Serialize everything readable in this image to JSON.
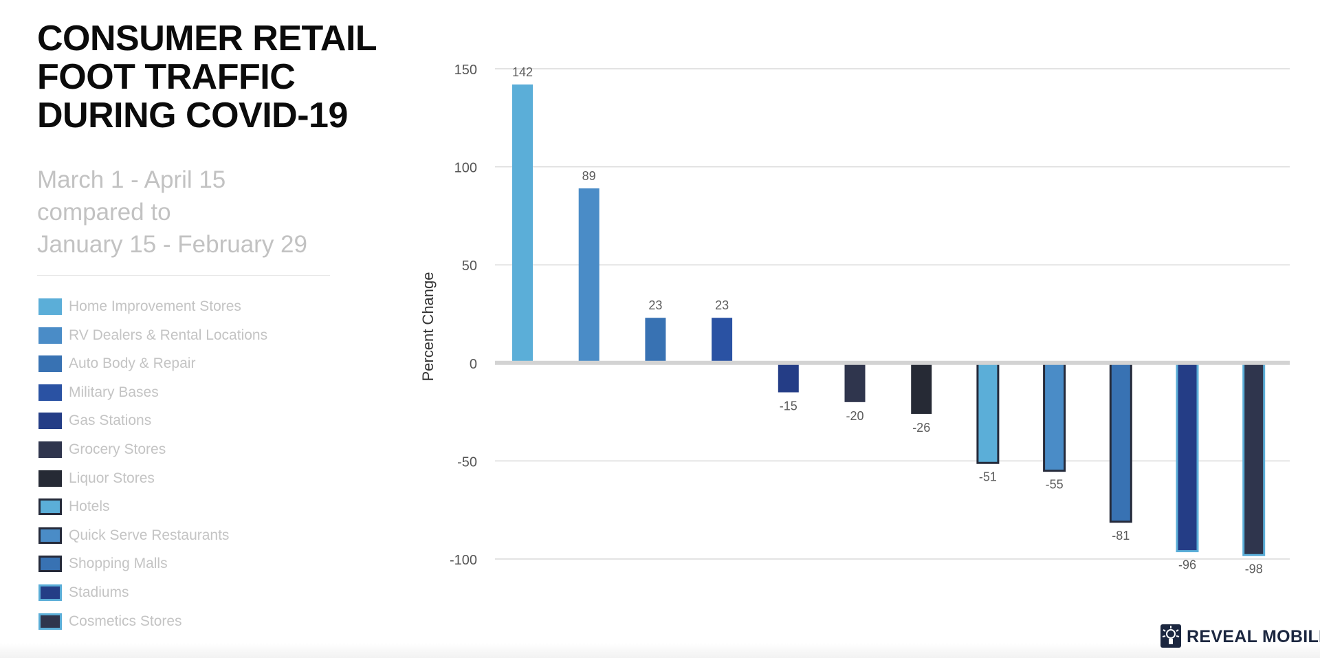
{
  "header": {
    "title_lines": [
      "CONSUMER RETAIL",
      "FOOT TRAFFIC",
      "DURING COVID-19"
    ],
    "subtitle_lines": [
      "March 1 - April 15",
      "compared to",
      "January 15 - February 29"
    ]
  },
  "brand": {
    "name": "REVEAL MOBILE",
    "trademark": "™"
  },
  "colors": {
    "c1": "#5BAED8",
    "c2": "#4A8CC7",
    "c3": "#3872B3",
    "c4": "#2A52A3",
    "c5": "#243D86",
    "c6": "#2F354D",
    "c7": "#262A35",
    "outline_dark": "#252A3A",
    "outline_light": "#5BAED8",
    "grid": "#dadada",
    "zero_line": "#d3d3d3",
    "tick_text": "#555555",
    "label_text": "#5c5c5c"
  },
  "chart_data": {
    "type": "bar",
    "title": "CONSUMER RETAIL FOOT TRAFFIC DURING COVID-19",
    "subtitle": "March 1 - April 15 compared to January 15 - February 29",
    "xlabel": "",
    "ylabel": "Percent Change",
    "ylim": [
      -100,
      150
    ],
    "yticks": [
      150,
      100,
      50,
      0,
      -50,
      -100
    ],
    "grid": true,
    "legend_position": "left",
    "categories": [
      "Home Improvement Stores",
      "RV Dealers & Rental Locations",
      "Auto Body & Repair",
      "Military Bases",
      "Gas Stations",
      "Grocery Stores",
      "Liquor Stores",
      "Hotels",
      "Quick Serve Restaurants",
      "Shopping Malls",
      "Stadiums",
      "Cosmetics Stores"
    ],
    "values": [
      142,
      89,
      23,
      23,
      -15,
      -20,
      -26,
      -51,
      -55,
      -81,
      -96,
      -98
    ],
    "bar_fills": [
      "#5BAED8",
      "#4A8CC7",
      "#3872B3",
      "#2A52A3",
      "#243D86",
      "#2F354D",
      "#262A35",
      "#5BAED8",
      "#4A8CC7",
      "#3872B3",
      "#243D86",
      "#2F354D"
    ],
    "bar_outlines": [
      "",
      "",
      "",
      "",
      "",
      "",
      "",
      "#252A3A",
      "#252A3A",
      "#252A3A",
      "#5BAED8",
      "#5BAED8"
    ]
  }
}
